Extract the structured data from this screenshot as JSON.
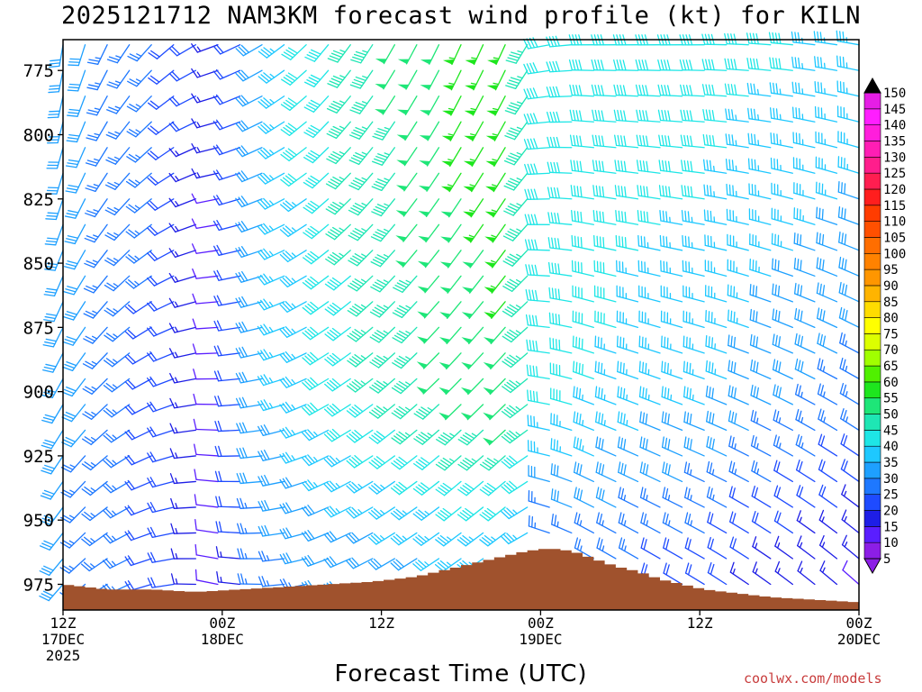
{
  "colors": {
    "terrain": "#a0522d",
    "credit": "#c83c3c",
    "colorbar": [
      "#8c1ee6",
      "#5a1eff",
      "#1e1ee6",
      "#1e4bff",
      "#1e78ff",
      "#1ea0ff",
      "#1ec8ff",
      "#1ee6e6",
      "#1ee6b4",
      "#1ee678",
      "#1ee61e",
      "#50f000",
      "#a0ff00",
      "#dcff00",
      "#ffff00",
      "#ffdc00",
      "#ffb400",
      "#ff9600",
      "#ff8200",
      "#ff6e00",
      "#ff5000",
      "#ff3c00",
      "#ff1e1e",
      "#ff1e50",
      "#ff1e8c",
      "#ff1eb4",
      "#ff1edc",
      "#ff1eff",
      "#e61ee6"
    ]
  },
  "chart_data": {
    "type": "wind_profile",
    "title": "2025121712 NAM3KM forecast wind profile (kt) for KILN",
    "xlabel": "Forecast Time (UTC)",
    "ylabel": "",
    "credit": "coolwx.com/models",
    "x_hours_range": [
      0,
      72
    ],
    "y_pressure_range": [
      763,
      985
    ],
    "y_tick_values": [
      775,
      800,
      825,
      850,
      875,
      900,
      925,
      950,
      975
    ],
    "y_tick_labels": [
      "775",
      "800",
      "825",
      "850",
      "875",
      "900",
      "925",
      "950",
      "975"
    ],
    "x_ticks": [
      {
        "hour": 0,
        "l1": "12Z",
        "l2": "17DEC",
        "l3": "2025"
      },
      {
        "hour": 14.4,
        "l1": "00Z",
        "l2": "18DEC",
        "l3": ""
      },
      {
        "hour": 28.8,
        "l1": "12Z",
        "l2": "",
        "l3": ""
      },
      {
        "hour": 43.2,
        "l1": "00Z",
        "l2": "19DEC",
        "l3": ""
      },
      {
        "hour": 57.6,
        "l1": "12Z",
        "l2": "",
        "l3": ""
      },
      {
        "hour": 72,
        "l1": "00Z",
        "l2": "20DEC",
        "l3": ""
      }
    ],
    "colorbar_labels": [
      "5",
      "10",
      "15",
      "20",
      "25",
      "30",
      "35",
      "40",
      "45",
      "50",
      "55",
      "60",
      "65",
      "70",
      "75",
      "80",
      "85",
      "90",
      "95",
      "100",
      "105",
      "110",
      "115",
      "120",
      "125",
      "130",
      "135",
      "140",
      "145",
      "150"
    ],
    "barb_hours": [
      0,
      2,
      4,
      6,
      8,
      10,
      12,
      14,
      16,
      18,
      20,
      22,
      24,
      26,
      28,
      30,
      32,
      34,
      36,
      38,
      40,
      42,
      44,
      46,
      48,
      50,
      52,
      54,
      56,
      58,
      60,
      62,
      64,
      66,
      68,
      70,
      72
    ],
    "barb_levels": [
      765,
      775,
      785,
      795,
      805,
      815,
      825,
      835,
      845,
      855,
      865,
      875,
      885,
      895,
      905,
      915,
      925,
      935,
      945,
      955,
      965,
      975
    ],
    "surface_pressure": {
      "hours": [
        0,
        4,
        8,
        12,
        16,
        20,
        24,
        28,
        32,
        36,
        40,
        42,
        44,
        46,
        48,
        50,
        52,
        54,
        56,
        58,
        60,
        64,
        68,
        72
      ],
      "values": [
        975,
        977,
        977,
        978,
        977,
        976,
        975,
        974,
        972,
        968,
        964,
        962,
        961,
        962,
        965,
        968,
        970,
        973,
        975,
        977,
        978,
        980,
        981,
        982
      ]
    },
    "wind_speed_kt": {
      "hours": [
        0,
        10,
        14,
        18,
        24,
        30,
        36,
        40,
        42,
        43.5,
        44,
        48,
        52,
        58,
        64,
        72
      ],
      "near_surface_970": [
        28,
        20,
        8,
        26,
        28,
        30,
        32,
        32,
        30,
        22,
        20,
        24,
        22,
        20,
        16,
        12
      ],
      "level_900": [
        30,
        20,
        10,
        30,
        40,
        44,
        50,
        52,
        46,
        42,
        40,
        38,
        36,
        34,
        30,
        26
      ],
      "level_775": [
        30,
        22,
        14,
        30,
        42,
        48,
        54,
        54,
        46,
        42,
        40,
        40,
        40,
        40,
        38,
        36
      ]
    },
    "wind_direction_deg": {
      "hours": [
        0,
        10,
        14,
        18,
        24,
        30,
        36,
        40,
        43,
        44,
        48,
        58,
        72
      ],
      "values": [
        210,
        250,
        270,
        260,
        240,
        230,
        225,
        225,
        235,
        280,
        290,
        290,
        300
      ]
    }
  }
}
